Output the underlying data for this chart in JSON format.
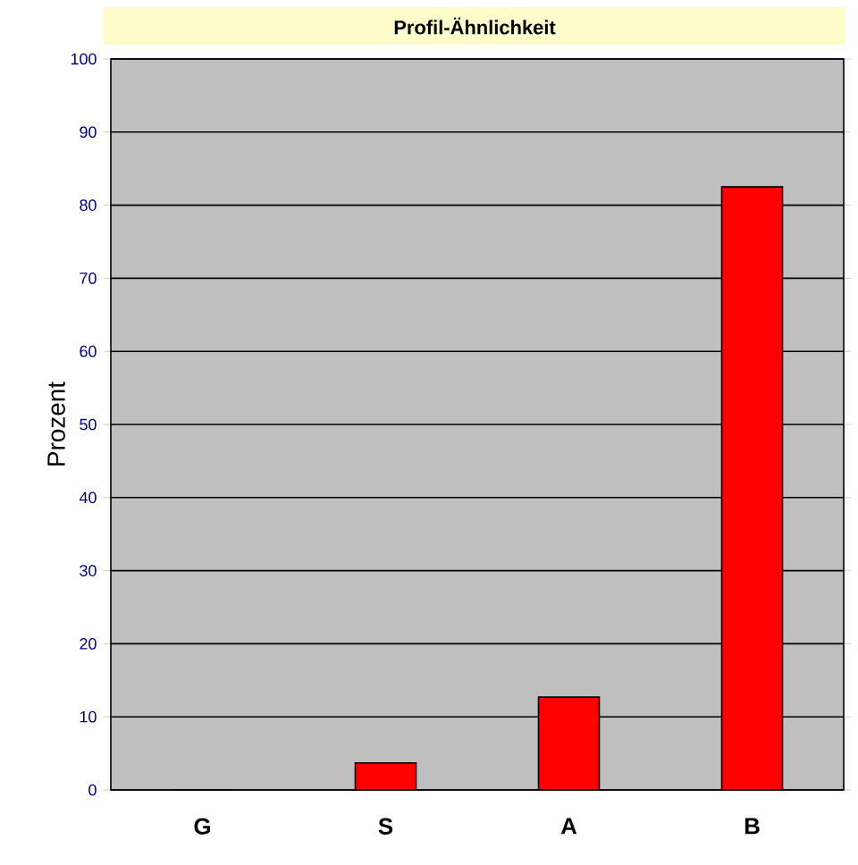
{
  "chart_data": {
    "type": "bar",
    "title": "Profil-Ähnlichkeit",
    "ylabel": "Prozent",
    "categories": [
      "G",
      "S",
      "A",
      "B"
    ],
    "values": [
      0,
      3.7,
      12.7,
      82.5
    ],
    "color": "#ff0000",
    "ylim": [
      0,
      100
    ],
    "yticks": [
      0,
      10,
      20,
      30,
      40,
      50,
      60,
      70,
      80,
      90,
      100
    ],
    "grid": "y"
  }
}
